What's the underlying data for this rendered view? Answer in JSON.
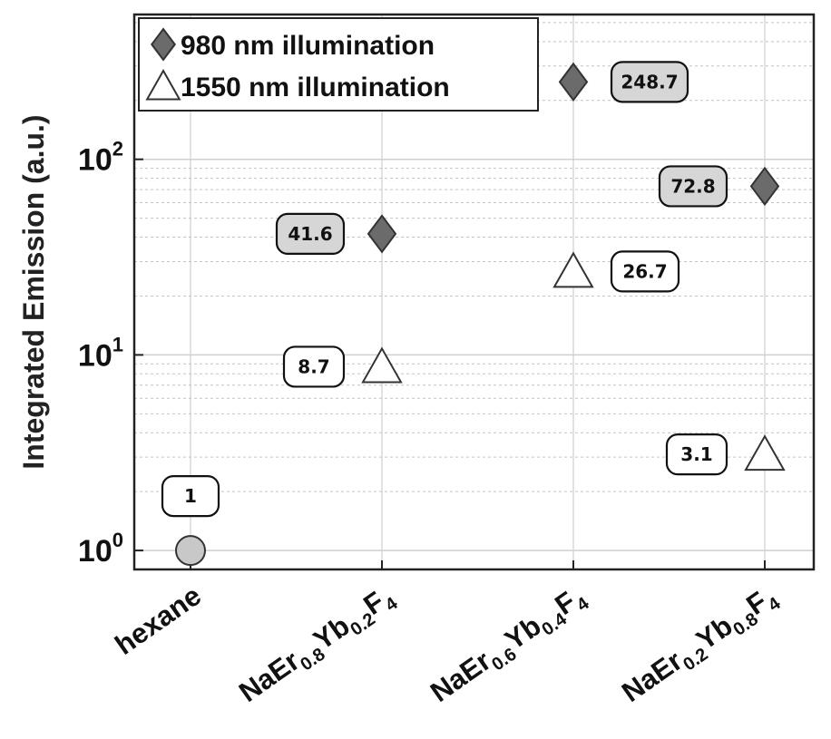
{
  "chart_data": {
    "type": "scatter",
    "title": "",
    "ylabel": "Integrated Emission (a.u.)",
    "xlabel": "",
    "yscale": "log",
    "ylim": [
      0.8,
      550
    ],
    "yticks": [
      {
        "value": 1,
        "base": "10",
        "exp": "0"
      },
      {
        "value": 10,
        "base": "10",
        "exp": "1"
      },
      {
        "value": 100,
        "base": "10",
        "exp": "2"
      }
    ],
    "grid": true,
    "legend_position": "top-left",
    "categories": [
      {
        "parts": [
          {
            "text": "hexane",
            "sub": false
          }
        ]
      },
      {
        "parts": [
          {
            "text": "NaEr",
            "sub": false
          },
          {
            "text": "0.8",
            "sub": true
          },
          {
            "text": "Yb",
            "sub": false
          },
          {
            "text": "0.2",
            "sub": true
          },
          {
            "text": "F",
            "sub": false
          },
          {
            "text": "4",
            "sub": true
          }
        ]
      },
      {
        "parts": [
          {
            "text": "NaEr",
            "sub": false
          },
          {
            "text": "0.6",
            "sub": true
          },
          {
            "text": "Yb",
            "sub": false
          },
          {
            "text": "0.4",
            "sub": true
          },
          {
            "text": "F",
            "sub": false
          },
          {
            "text": "4",
            "sub": true
          }
        ]
      },
      {
        "parts": [
          {
            "text": "NaEr",
            "sub": false
          },
          {
            "text": "0.2",
            "sub": true
          },
          {
            "text": "Yb",
            "sub": false
          },
          {
            "text": "0.8",
            "sub": true
          },
          {
            "text": "F",
            "sub": false
          },
          {
            "text": "4",
            "sub": true
          }
        ]
      }
    ],
    "series": [
      {
        "name": "980 nm illumination",
        "marker": "diamond",
        "color": "#6b6b6b",
        "points": [
          {
            "x": 1,
            "y": 41.6,
            "label": "41.6",
            "label_side": "left"
          },
          {
            "x": 2,
            "y": 248.7,
            "label": "248.7",
            "label_side": "right"
          },
          {
            "x": 3,
            "y": 72.8,
            "label": "72.8",
            "label_side": "left"
          }
        ]
      },
      {
        "name": "1550 nm illumination",
        "marker": "triangle",
        "color": "#ffffff",
        "points": [
          {
            "x": 1,
            "y": 8.7,
            "label": "8.7",
            "label_side": "left"
          },
          {
            "x": 2,
            "y": 26.7,
            "label": "26.7",
            "label_side": "right"
          },
          {
            "x": 3,
            "y": 3.1,
            "label": "3.1",
            "label_side": "left"
          }
        ]
      },
      {
        "marker": "circle",
        "color": "#c8c8c8",
        "points": [
          {
            "x": 0,
            "y": 1,
            "label": "1",
            "label_side": "above"
          }
        ]
      }
    ],
    "label_fill": {
      "diamond": "#d6d6d6",
      "triangle": "#ffffff",
      "circle": "#ffffff"
    }
  }
}
